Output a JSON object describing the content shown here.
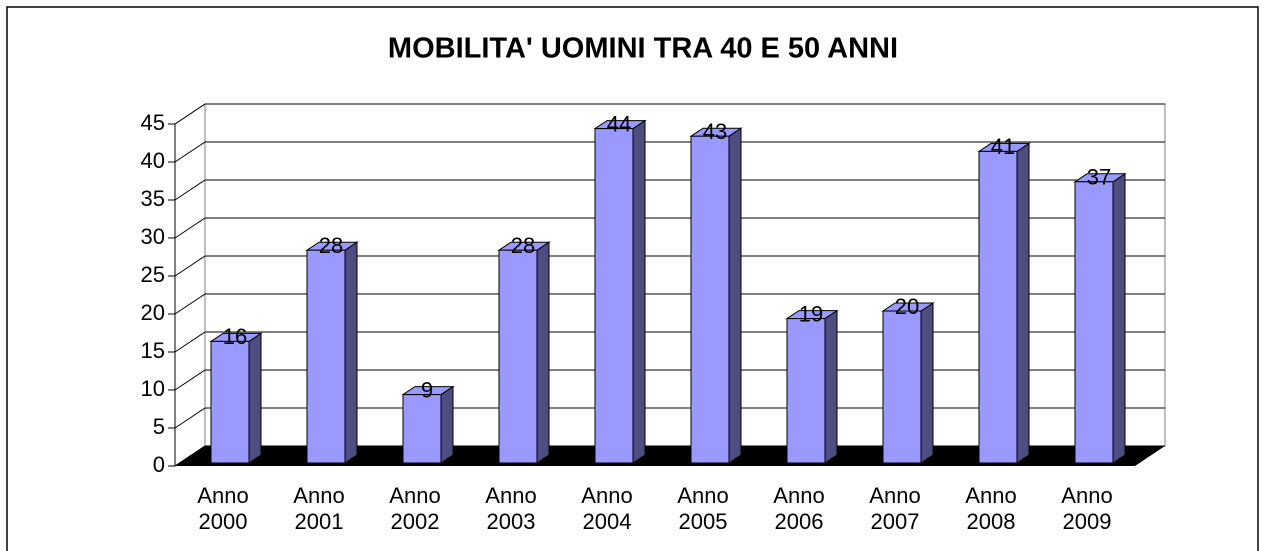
{
  "chart_data": {
    "type": "bar3d",
    "title": "MOBILITA' UOMINI TRA 40 E 50 ANNI",
    "categories": [
      "Anno 2000",
      "Anno 2001",
      "Anno 2002",
      "Anno 2003",
      "Anno 2004",
      "Anno 2005",
      "Anno 2006",
      "Anno 2007",
      "Anno 2008",
      "Anno 2009"
    ],
    "values": [
      16,
      28,
      9,
      28,
      44,
      43,
      19,
      20,
      41,
      37
    ],
    "color": "#9999ff",
    "ylim": [
      0,
      45
    ],
    "yticks": [
      0,
      5,
      10,
      15,
      20,
      25,
      30,
      35,
      40,
      45
    ],
    "grid": true
  }
}
